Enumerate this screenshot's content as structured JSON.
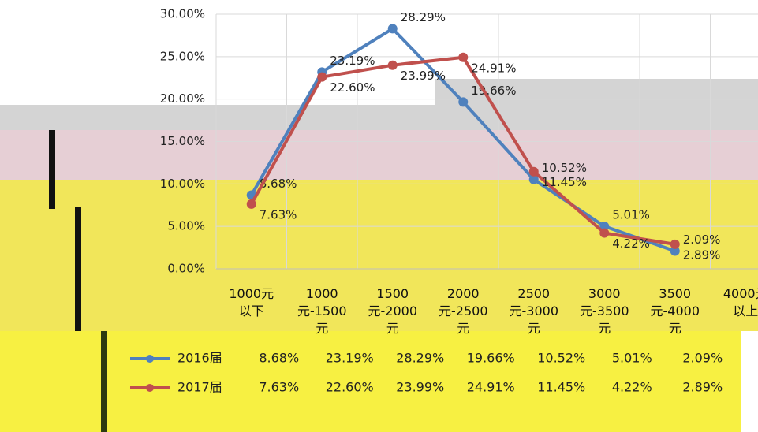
{
  "chart_data": {
    "type": "line",
    "categories": [
      "1000元以下",
      "1000元-1500元",
      "1500元-2000元",
      "2000元-2500元",
      "2500元-3000元",
      "3000元-3500元",
      "3500元-4000元",
      "4000元以上"
    ],
    "series": [
      {
        "name": "2016届",
        "color": "#4f81bd",
        "values": [
          8.68,
          23.19,
          28.29,
          19.66,
          10.52,
          5.01,
          2.09,
          null
        ],
        "value_labels": [
          "8.68%",
          "23.19%",
          "28.29%",
          "19.66%",
          "10.52%",
          "5.01%",
          "2.09%",
          null
        ]
      },
      {
        "name": "2017届",
        "color": "#c0504d",
        "values": [
          7.63,
          22.6,
          23.99,
          24.91,
          11.45,
          4.22,
          2.89,
          null
        ],
        "value_labels": [
          "7.63%",
          "22.60%",
          "23.99%",
          "24.91%",
          "11.45%",
          "4.22%",
          "2.89%",
          null
        ]
      }
    ],
    "ylim": [
      0,
      30
    ],
    "yticks": [
      {
        "value": 0,
        "label": "0.00%"
      },
      {
        "value": 5,
        "label": "5.00%"
      },
      {
        "value": 10,
        "label": "10.00%"
      },
      {
        "value": 15,
        "label": "15.00%"
      },
      {
        "value": 20,
        "label": "20.00%"
      },
      {
        "value": 25,
        "label": "25.00%"
      },
      {
        "value": 30,
        "label": "30.00%"
      }
    ],
    "grid": true
  }
}
